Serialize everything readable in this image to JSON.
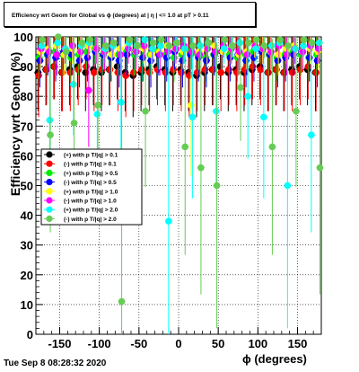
{
  "title": "Efficiency wrt Geom for Global vs ϕ (degrees) at | η | <= 1.0 at pT > 0.11",
  "footer": "Tue Sep  8 08:28:32 2020",
  "chart_data": {
    "type": "scatter",
    "xlabel": "ϕ (degrees)",
    "ylabel": "Efficiency wrt Geom (%)",
    "xlim": [
      -180,
      180
    ],
    "ylim": [
      0,
      100
    ],
    "x_ticks": [
      "-150",
      "-100",
      "-50",
      "0",
      "50",
      "100",
      "150"
    ],
    "y_ticks": [
      "0",
      "10",
      "20",
      "30",
      "40",
      "50",
      "60",
      "70",
      "80",
      "90",
      "100"
    ],
    "grid": true,
    "legend_position": "middle-left",
    "x": [
      -175,
      -165,
      -155,
      -145,
      -135,
      -125,
      -115,
      -105,
      -95,
      -85,
      -75,
      -65,
      -55,
      -45,
      -35,
      -25,
      -15,
      -5,
      5,
      15,
      25,
      35,
      45,
      55,
      65,
      75,
      85,
      95,
      105,
      115,
      125,
      135,
      145,
      155,
      165,
      175
    ],
    "series": [
      {
        "name": "(+) with p T/|q| > 0.1",
        "color": "#000000",
        "marker": "circle",
        "values": [
          88,
          89,
          90,
          88,
          89,
          90,
          88,
          89,
          88,
          89,
          90,
          88,
          87,
          88,
          89,
          90,
          89,
          88,
          89,
          88,
          87,
          88,
          89,
          90,
          88,
          89,
          88,
          89,
          90,
          88,
          89,
          88,
          89,
          90,
          89,
          88
        ]
      },
      {
        "name": "(-) with p T/|q| > 0.1",
        "color": "#ff0000",
        "marker": "circle",
        "values": [
          87,
          89,
          90,
          88,
          88,
          89,
          90,
          88,
          89,
          89,
          88,
          87,
          88,
          89,
          88,
          89,
          88,
          89,
          88,
          87,
          88,
          89,
          89,
          88,
          89,
          88,
          89,
          90,
          89,
          88,
          89,
          88,
          88,
          89,
          90,
          88
        ]
      },
      {
        "name": "(+) with p T/|q| > 0.5",
        "color": "#00ee00",
        "marker": "circle",
        "values": [
          93,
          94,
          95,
          94,
          93,
          94,
          95,
          96,
          94,
          93,
          94,
          95,
          94,
          93,
          94,
          95,
          94,
          93,
          94,
          95,
          94,
          93,
          94,
          95,
          94,
          93,
          94,
          95,
          96,
          94,
          93,
          94,
          95,
          94,
          93,
          94
        ]
      },
      {
        "name": "(-) with p T/|q| > 0.5",
        "color": "#0000ff",
        "marker": "circle",
        "values": [
          92,
          94,
          93,
          95,
          94,
          92,
          93,
          95,
          94,
          93,
          92,
          94,
          95,
          93,
          92,
          94,
          93,
          95,
          92,
          94,
          93,
          92,
          94,
          95,
          93,
          94,
          92,
          93,
          95,
          94,
          92,
          93,
          94,
          95,
          93,
          92
        ]
      },
      {
        "name": "(+) with p T/|q| > 1.0",
        "color": "#ffff00",
        "marker": "circle",
        "values": [
          95,
          96,
          97,
          94,
          96,
          95,
          97,
          96,
          95,
          94,
          96,
          97,
          95,
          96,
          94,
          95,
          97,
          96,
          95,
          77,
          95,
          96,
          97,
          95,
          96,
          94,
          95,
          97,
          96,
          95,
          94,
          96,
          97,
          95,
          96,
          95
        ]
      },
      {
        "name": "(-) with p T/|q| > 1.0",
        "color": "#ff00ff",
        "marker": "circle",
        "values": [
          96,
          95,
          94,
          96,
          97,
          95,
          82,
          96,
          95,
          97,
          94,
          96,
          95,
          97,
          96,
          94,
          95,
          96,
          97,
          95,
          94,
          96,
          95,
          97,
          96,
          95,
          94,
          97,
          96,
          95,
          97,
          94,
          96,
          95,
          97,
          96
        ]
      },
      {
        "name": "(+) with p T/|q| > 2.0",
        "color": "#00ffff",
        "marker": "circle",
        "values": [
          97,
          72,
          98,
          96,
          84,
          97,
          98,
          74,
          96,
          97,
          78,
          98,
          97,
          99,
          96,
          97,
          38,
          98,
          96,
          73,
          97,
          98,
          75,
          96,
          97,
          98,
          80,
          96,
          73,
          97,
          98,
          50,
          96,
          97,
          67,
          98
        ]
      },
      {
        "name": "(-) with p T/|q| > 2.0",
        "color": "#66cc55",
        "marker": "circle",
        "values": [
          99,
          67,
          100,
          95,
          71,
          98,
          99,
          77,
          97,
          98,
          11,
          99,
          97,
          75,
          98,
          99,
          97,
          98,
          63,
          97,
          56,
          98,
          50,
          99,
          97,
          83,
          98,
          99,
          97,
          63,
          99,
          97,
          75,
          99,
          98,
          56
        ]
      }
    ]
  }
}
